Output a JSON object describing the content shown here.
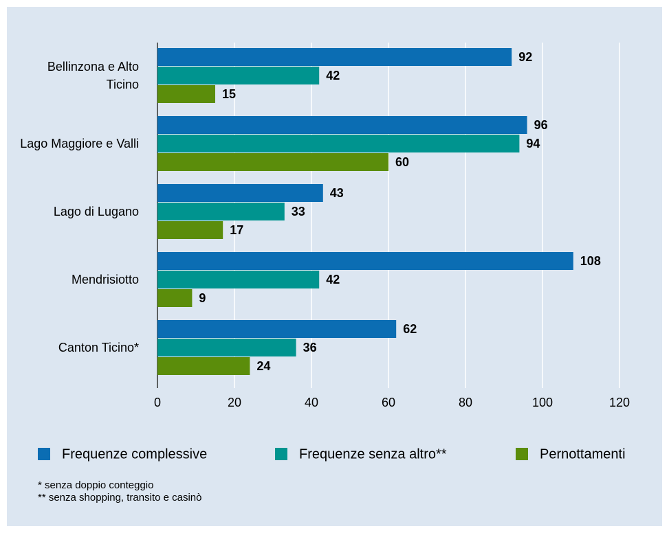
{
  "chart_data": {
    "type": "bar",
    "orientation": "horizontal",
    "categories": [
      "Bellinzona e Alto Ticino",
      "Lago Maggiore e Valli",
      "Lago di Lugano",
      "Mendrisiotto",
      "Canton Ticino*"
    ],
    "series": [
      {
        "name": "Frequenze complessive",
        "color": "#0b6db3",
        "values": [
          92,
          96,
          43,
          108,
          62
        ]
      },
      {
        "name": "Frequenze senza altro**",
        "color": "#00948f",
        "values": [
          42,
          94,
          33,
          42,
          36
        ]
      },
      {
        "name": "Pernottamenti",
        "color": "#5b8d0b",
        "values": [
          15,
          60,
          17,
          9,
          24
        ]
      }
    ],
    "xlim": [
      0,
      120
    ],
    "xticks": [
      0,
      20,
      40,
      60,
      80,
      100,
      120
    ],
    "grid": true,
    "legend": "bottom",
    "annotations": [
      "* senza doppio conteggio",
      "** senza shopping, transito e casinò"
    ]
  }
}
